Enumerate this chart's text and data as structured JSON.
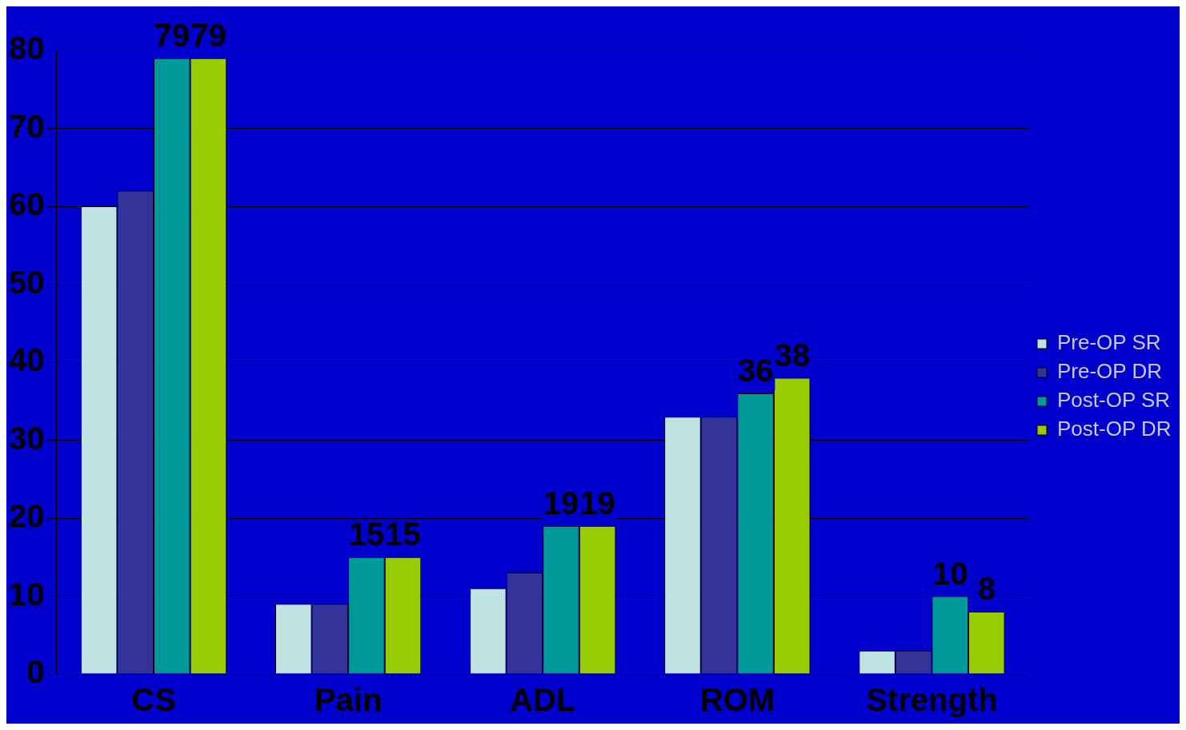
{
  "chart_data": {
    "type": "bar",
    "categories": [
      "CS",
      "Pain",
      "ADL",
      "ROM",
      "Strength"
    ],
    "series": [
      {
        "name": "Pre-OP SR",
        "color": "#bfe3e3",
        "values": [
          60,
          9,
          11,
          33,
          3
        ]
      },
      {
        "name": "Pre-OP DR",
        "color": "#333399",
        "values": [
          62,
          9,
          13,
          33,
          3
        ]
      },
      {
        "name": "Post-OP SR",
        "color": "#009999",
        "values": [
          79,
          15,
          19,
          36,
          10
        ],
        "value_labels": [
          "79",
          "15",
          "19",
          "36",
          "10"
        ]
      },
      {
        "name": "Post-OP DR",
        "color": "#99cc00",
        "values": [
          79,
          15,
          19,
          38,
          8
        ],
        "value_labels": [
          "79",
          "15",
          "19",
          "38",
          "8"
        ]
      }
    ],
    "ylim": [
      0,
      80
    ],
    "yticks": [
      0,
      10,
      20,
      30,
      40,
      50,
      60,
      70,
      80
    ],
    "grid": "y",
    "legend": "right"
  }
}
